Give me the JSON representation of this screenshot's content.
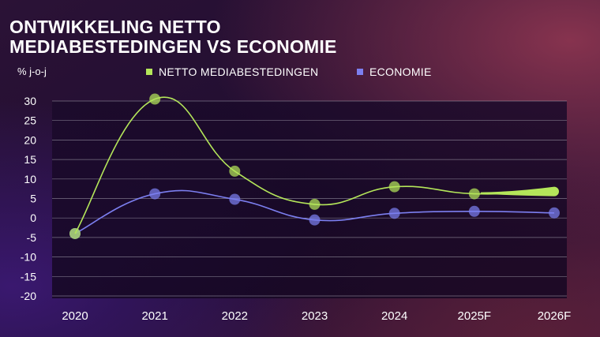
{
  "title_lines": [
    "ONTWIKKELING NETTO",
    "MEDIABESTEDINGEN VS ECONOMIE"
  ],
  "colors": {
    "media": "#b4e65a",
    "economy": "#7c7ff0",
    "grid": "#c8c8d2",
    "text": "#ffffff"
  },
  "chart_data": {
    "type": "line",
    "title": "ONTWIKKELING NETTO MEDIABESTEDINGEN VS ECONOMIE",
    "ylabel": "% j-o-j",
    "xlabel": "",
    "categories": [
      "2020",
      "2021",
      "2022",
      "2023",
      "2024",
      "2025F",
      "2026F"
    ],
    "yticks": [
      30,
      25,
      20,
      15,
      10,
      5,
      0,
      -5,
      -10,
      -15,
      -20
    ],
    "ylim": [
      -20,
      30
    ],
    "grid": true,
    "legend_position": "top",
    "series": [
      {
        "name": "NETTO MEDIABESTEDINGEN",
        "color": "#b4e65a",
        "values": [
          -4,
          30.5,
          12,
          3.5,
          8,
          6.2,
          6.8
        ]
      },
      {
        "name": "ECONOMIE",
        "color": "#7c7ff0",
        "values": [
          -4,
          6.2,
          4.8,
          -0.5,
          1.2,
          1.7,
          1.3
        ]
      }
    ]
  }
}
